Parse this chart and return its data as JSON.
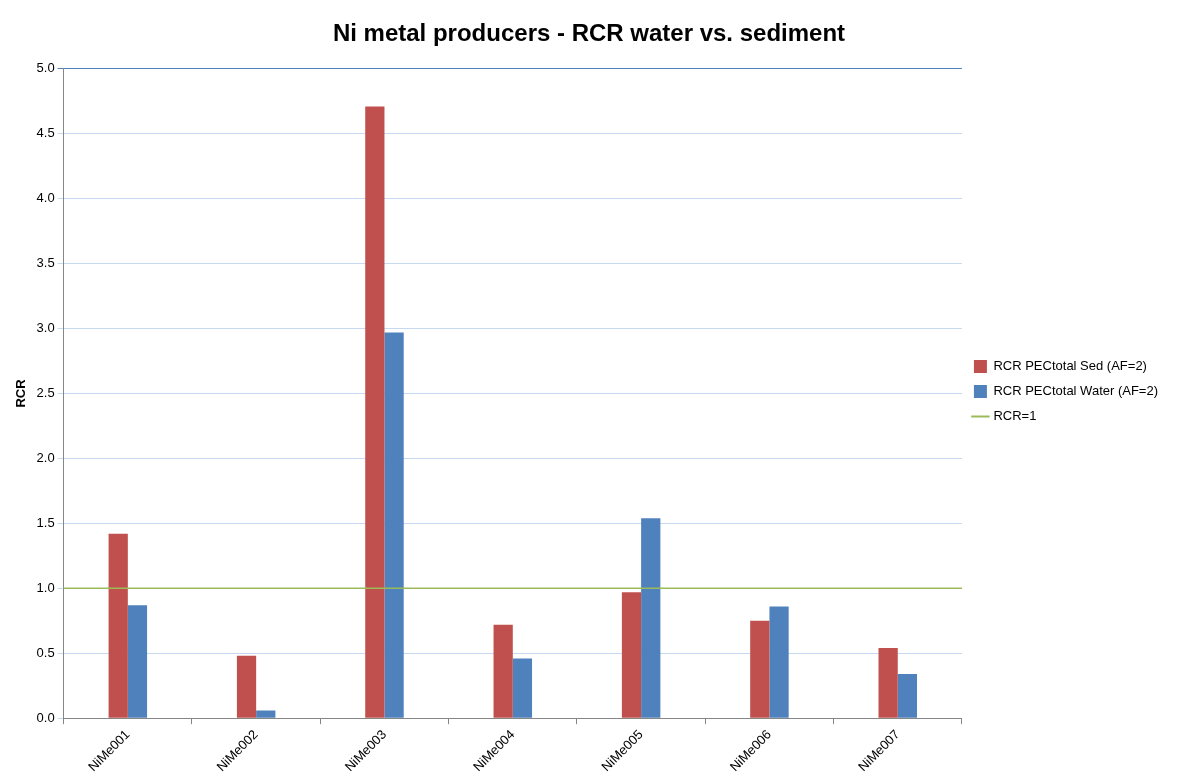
{
  "chart_data": {
    "type": "bar",
    "title": "Ni metal producers - RCR water vs. sediment",
    "ylabel": "RCR",
    "categories": [
      "NiMe001",
      "NiMe002",
      "NiMe003",
      "NiMe004",
      "NiMe005",
      "NiMe006",
      "NiMe007"
    ],
    "series": [
      {
        "name": "RCR PECtotal Sed (AF=2)",
        "color": "#c0504d",
        "values": [
          1.42,
          0.48,
          4.71,
          0.72,
          0.97,
          0.75,
          0.54
        ]
      },
      {
        "name": "RCR PECtotal Water (AF=2)",
        "color": "#4f81bd",
        "values": [
          0.87,
          0.06,
          2.97,
          0.46,
          1.54,
          0.86,
          0.34
        ]
      }
    ],
    "ylim": [
      0,
      5
    ],
    "yticks": [
      {
        "value": 0,
        "label": "0.0"
      },
      {
        "value": 0.5,
        "label": "0.5"
      },
      {
        "value": 1,
        "label": "1.0"
      },
      {
        "value": 1.5,
        "label": "1.5"
      },
      {
        "value": 2,
        "label": "2.0"
      },
      {
        "value": 2.5,
        "label": "2.5"
      },
      {
        "value": 3,
        "label": "3.0"
      },
      {
        "value": 3.5,
        "label": "3.5"
      },
      {
        "value": 4,
        "label": "4.0"
      },
      {
        "value": 4.5,
        "label": "4.5"
      },
      {
        "value": 5,
        "label": "5.0"
      }
    ],
    "grid": "y",
    "legend": "right",
    "ref_lines": [
      {
        "axis": "y",
        "value": 1,
        "label": "RCR=1",
        "color": "#9bbb59"
      }
    ]
  }
}
